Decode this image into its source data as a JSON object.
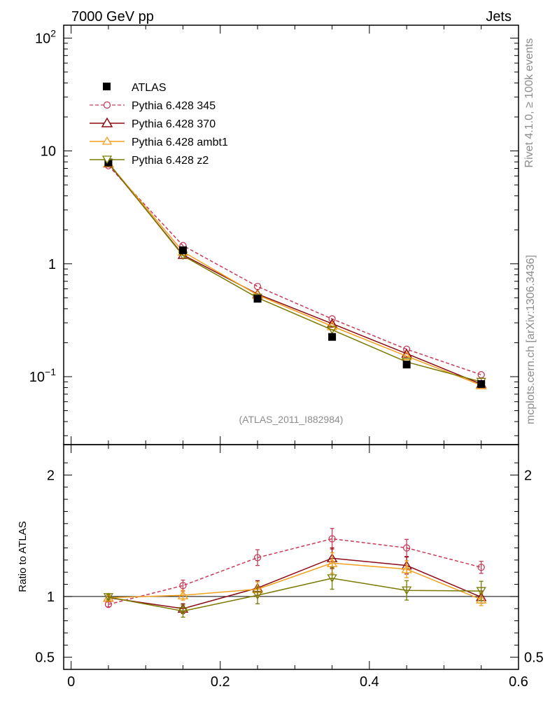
{
  "header": {
    "left": "7000 GeV pp",
    "right": "Jets"
  },
  "side_labels": {
    "rivet": "Rivet 4.1.0, ≥ 100k events",
    "mcplots": "mcplots.cern.ch [arXiv:1306.3436]"
  },
  "analysis_tag": "(ATLAS_2011_I882984)",
  "chart_data": [
    {
      "type": "scatter",
      "role": "main",
      "yscale": "log",
      "xlim": [
        -0.01,
        0.6
      ],
      "ylim": [
        0.025,
        130
      ],
      "y_ticks": [
        {
          "value": 100,
          "mantissa": "10",
          "exp": "2"
        },
        {
          "value": 10,
          "mantissa": "10",
          "exp": ""
        },
        {
          "value": 1,
          "mantissa": "1",
          "exp": ""
        },
        {
          "value": 0.1,
          "mantissa": "10",
          "exp": "−1"
        }
      ],
      "x": [
        0.05,
        0.15,
        0.25,
        0.35,
        0.45,
        0.55
      ],
      "series": [
        {
          "name": "ATLAS",
          "color": "#000000",
          "marker": "square",
          "line": "none",
          "values": [
            7.9,
            1.32,
            0.49,
            0.225,
            0.128,
            0.086
          ]
        },
        {
          "name": "Pythia 6.428 345",
          "color": "#c83c5a",
          "marker": "open-circle",
          "line": "dashed",
          "values": [
            7.4,
            1.45,
            0.63,
            0.325,
            0.175,
            0.104
          ]
        },
        {
          "name": "Pythia 6.428 370",
          "color": "#8b0a14",
          "marker": "open-triangle",
          "line": "solid",
          "values": [
            7.75,
            1.2,
            0.54,
            0.295,
            0.16,
            0.086
          ]
        },
        {
          "name": "Pythia 6.428 ambt1",
          "color": "#f0a01e",
          "marker": "open-triangle",
          "line": "solid",
          "values": [
            7.8,
            1.28,
            0.53,
            0.28,
            0.152,
            0.084
          ]
        },
        {
          "name": "Pythia 6.428 z2",
          "color": "#7a7a00",
          "marker": "open-triangle-down",
          "line": "solid",
          "values": [
            7.85,
            1.18,
            0.5,
            0.26,
            0.135,
            0.09
          ]
        }
      ]
    },
    {
      "type": "line",
      "role": "ratio",
      "ylabel": "Ratio to ATLAS",
      "xlim": [
        -0.01,
        0.6
      ],
      "ylim": [
        0.4,
        2.25
      ],
      "reference": 1,
      "y_ticks": [
        "2",
        "1",
        "0.5"
      ],
      "x_ticks": [
        "0",
        "0.2",
        "0.4",
        "0.6"
      ],
      "x": [
        0.05,
        0.15,
        0.25,
        0.35,
        0.45,
        0.55
      ],
      "series": [
        {
          "name": "Pythia 6.428 345",
          "color": "#c83c5a",
          "marker": "open-circle",
          "line": "dashed",
          "values": [
            0.935,
            1.09,
            1.32,
            1.475,
            1.4,
            1.24
          ],
          "errors": [
            0.02,
            0.045,
            0.065,
            0.085,
            0.07,
            0.05
          ]
        },
        {
          "name": "Pythia 6.428 370",
          "color": "#8b0a14",
          "marker": "open-triangle",
          "line": "solid",
          "values": [
            0.99,
            0.9,
            1.07,
            1.315,
            1.255,
            0.995
          ],
          "errors": [
            0.02,
            0.04,
            0.06,
            0.085,
            0.07,
            0.05
          ]
        },
        {
          "name": "Pythia 6.428 ambt1",
          "color": "#f0a01e",
          "marker": "open-triangle",
          "line": "solid",
          "values": [
            0.99,
            1.01,
            1.06,
            1.275,
            1.225,
            0.975
          ],
          "errors": [
            0.02,
            0.04,
            0.06,
            0.085,
            0.07,
            0.05
          ]
        },
        {
          "name": "Pythia 6.428 z2",
          "color": "#7a7a00",
          "marker": "open-triangle-down",
          "line": "solid",
          "values": [
            0.995,
            0.88,
            1.01,
            1.15,
            1.05,
            1.045
          ],
          "errors": [
            0.02,
            0.05,
            0.07,
            0.09,
            0.08,
            0.08
          ]
        }
      ]
    }
  ]
}
